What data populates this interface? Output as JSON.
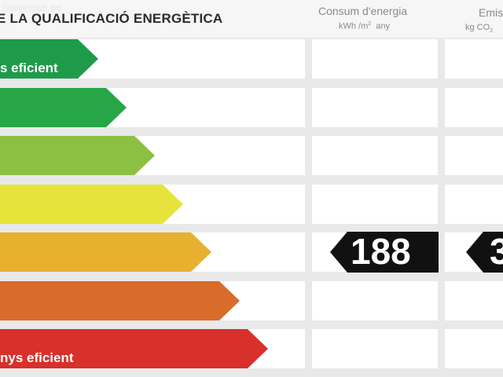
{
  "watermark": "Solocasa.es",
  "header": {
    "title": "E LA QUALIFICACIÓ ENERGÈTICA"
  },
  "columns": {
    "consumption": {
      "title": "Consum d'energia",
      "unit_pre": "kWh /m",
      "unit_sup": "2",
      "unit_post": "  any"
    },
    "emissions": {
      "title": "Emis",
      "unit_pre": "kg CO",
      "unit_sub": "2"
    }
  },
  "rating_scale": [
    {
      "label": "s eficient",
      "color": "#1e9b4a"
    },
    {
      "label": "",
      "color": "#26a646"
    },
    {
      "label": "",
      "color": "#8cc043"
    },
    {
      "label": "",
      "color": "#e6e43a"
    },
    {
      "label": "",
      "color": "#e8b02f"
    },
    {
      "label": "",
      "color": "#d96b2b"
    },
    {
      "label": "nys eficient",
      "color": "#d8302b"
    }
  ],
  "active_row": 4,
  "consumption_value": "188",
  "emissions_value": "3",
  "colors": {
    "tag_bg": "#111111",
    "panel_bg": "#ffffff",
    "page_bg": "#e9e9e9"
  }
}
